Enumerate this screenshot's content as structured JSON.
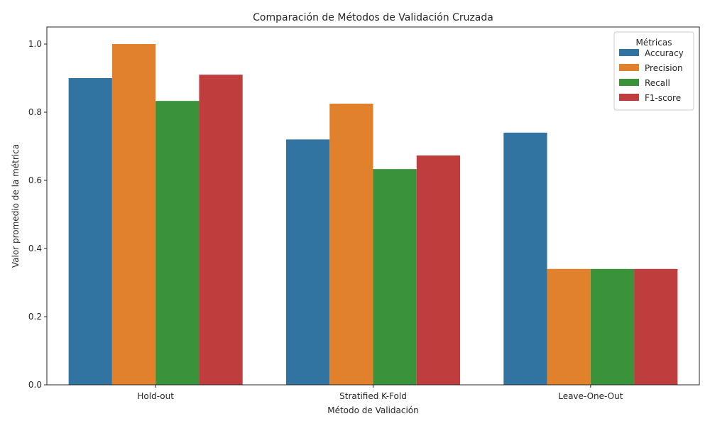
{
  "chart_data": {
    "type": "bar",
    "title": "Comparación de Métodos de Validación Cruzada",
    "xlabel": "Método de Validación",
    "ylabel": "Valor promedio de la métrica",
    "categories": [
      "Hold-out",
      "Stratified K-Fold",
      "Leave-One-Out"
    ],
    "series": [
      {
        "name": "Accuracy",
        "color": "#3274a1",
        "values": [
          0.9,
          0.72,
          0.74
        ]
      },
      {
        "name": "Precision",
        "color": "#e1812c",
        "values": [
          1.0,
          0.825,
          0.34
        ]
      },
      {
        "name": "Recall",
        "color": "#3a923a",
        "values": [
          0.833,
          0.633,
          0.34
        ]
      },
      {
        "name": "F1-score",
        "color": "#c03d3e",
        "values": [
          0.91,
          0.673,
          0.34
        ]
      }
    ],
    "ylim": [
      0,
      1.05
    ],
    "yticks": [
      0.0,
      0.2,
      0.4,
      0.6,
      0.8,
      1.0
    ],
    "ytick_labels": [
      "0.0",
      "0.2",
      "0.4",
      "0.6",
      "0.8",
      "1.0"
    ],
    "grid": false,
    "legend": {
      "title": "Métricas",
      "placement": "top-right"
    }
  }
}
